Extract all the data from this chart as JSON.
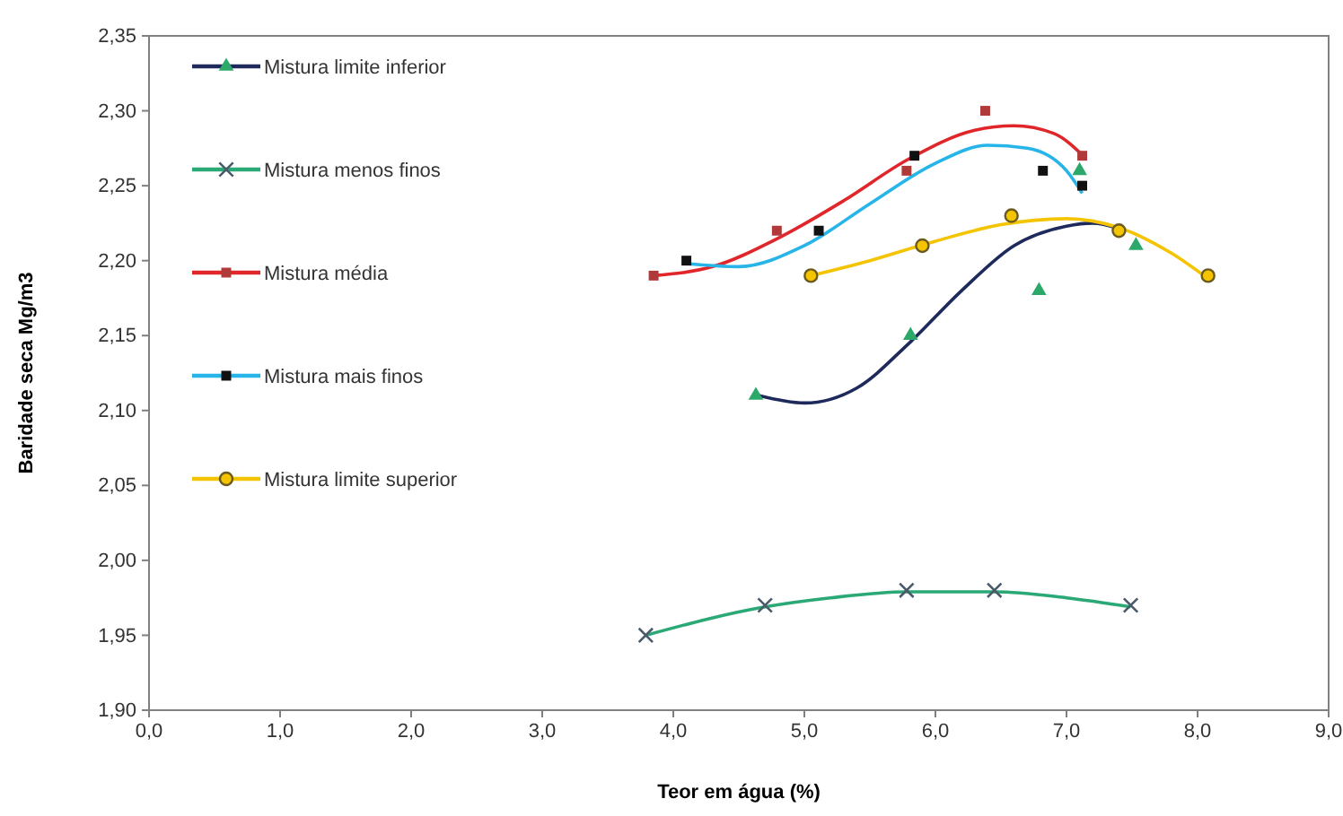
{
  "chart_data": {
    "type": "scatter",
    "xlabel": "Teor em água (%)",
    "ylabel": "Baridade seca Mg/m3",
    "xlim": [
      0,
      9
    ],
    "xticks": [
      {
        "value": 0,
        "label": "0,0"
      },
      {
        "value": 1,
        "label": "1,0"
      },
      {
        "value": 2,
        "label": "2,0"
      },
      {
        "value": 3,
        "label": "3,0"
      },
      {
        "value": 4,
        "label": "4,0"
      },
      {
        "value": 5,
        "label": "5,0"
      },
      {
        "value": 6,
        "label": "6,0"
      },
      {
        "value": 7,
        "label": "7,0"
      },
      {
        "value": 8,
        "label": "8,0"
      },
      {
        "value": 9,
        "label": "9,0"
      }
    ],
    "ylim": [
      1.9,
      2.35
    ],
    "yticks": [
      {
        "value": 1.9,
        "label": "1,90"
      },
      {
        "value": 1.95,
        "label": "1,95"
      },
      {
        "value": 2,
        "label": "2,00"
      },
      {
        "value": 2.05,
        "label": "2,05"
      },
      {
        "value": 2.1,
        "label": "2,10"
      },
      {
        "value": 2.15,
        "label": "2,15"
      },
      {
        "value": 2.2,
        "label": "2,20"
      },
      {
        "value": 2.25,
        "label": "2,25"
      },
      {
        "value": 2.3,
        "label": "2,30"
      },
      {
        "value": 2.35,
        "label": "2,35"
      }
    ],
    "grid": false,
    "legend": "top left",
    "series": [
      {
        "name": "Mistura limite inferior",
        "marker": "triangle",
        "color": "#2ca86a",
        "x": [
          4.63,
          5.81,
          6.79,
          7.1,
          7.53
        ],
        "values": [
          2.11,
          2.15,
          2.18,
          2.26,
          2.21
        ]
      },
      {
        "type": "line",
        "color": "#1f2a5c",
        "x": [
          4.65,
          5.0,
          5.4,
          5.8,
          6.2,
          6.6,
          7.0,
          7.2,
          7.45
        ],
        "values": [
          2.11,
          2.105,
          2.115,
          2.145,
          2.18,
          2.21,
          2.223,
          2.225,
          2.22
        ]
      },
      {
        "name": "Mistura menos finos",
        "marker": "cross",
        "color": "#4a5a6a",
        "x": [
          3.79,
          4.7,
          5.78,
          6.45,
          7.49
        ],
        "values": [
          1.95,
          1.97,
          1.98,
          1.98,
          1.97
        ]
      },
      {
        "type": "line",
        "color": "#2aa876",
        "x": [
          3.79,
          4.7,
          5.2,
          5.78,
          6.45,
          7.0,
          7.49
        ],
        "values": [
          1.95,
          1.969,
          1.975,
          1.979,
          1.979,
          1.975,
          1.969
        ]
      },
      {
        "name": "Mistura média",
        "marker": "square",
        "color": "#b03a3a",
        "x": [
          3.85,
          4.79,
          5.78,
          6.38,
          7.12
        ],
        "values": [
          2.19,
          2.22,
          2.26,
          2.3,
          2.27
        ]
      },
      {
        "type": "line",
        "color": "#e0262a",
        "x": [
          3.85,
          4.3,
          4.8,
          5.3,
          5.8,
          6.3,
          6.6,
          6.9,
          7.15
        ],
        "values": [
          2.19,
          2.196,
          2.215,
          2.24,
          2.268,
          2.287,
          2.29,
          2.285,
          2.268
        ]
      },
      {
        "name": "Mistura mais finos",
        "marker": "square",
        "color": "#111111",
        "x": [
          4.1,
          5.11,
          5.84,
          6.82,
          7.12
        ],
        "values": [
          2.2,
          2.22,
          2.27,
          2.26,
          2.25
        ]
      },
      {
        "type": "line",
        "color": "#27b4e8",
        "x": [
          4.1,
          4.5,
          5.0,
          5.5,
          6.0,
          6.4,
          6.7,
          7.0,
          7.12
        ],
        "values": [
          2.198,
          2.196,
          2.21,
          2.238,
          2.265,
          2.277,
          2.275,
          2.26,
          2.245
        ]
      },
      {
        "name": "Mistura limite superior",
        "marker": "circle",
        "color": "#f5c400",
        "x": [
          5.05,
          5.9,
          6.58,
          7.4,
          8.08
        ],
        "values": [
          2.19,
          2.21,
          2.23,
          2.22,
          2.19
        ]
      },
      {
        "type": "line",
        "color": "#f5c400",
        "x": [
          5.05,
          5.5,
          6.0,
          6.5,
          7.0,
          7.4,
          7.8,
          8.08
        ],
        "values": [
          2.19,
          2.2,
          2.213,
          2.224,
          2.228,
          2.222,
          2.205,
          2.188
        ]
      }
    ]
  }
}
